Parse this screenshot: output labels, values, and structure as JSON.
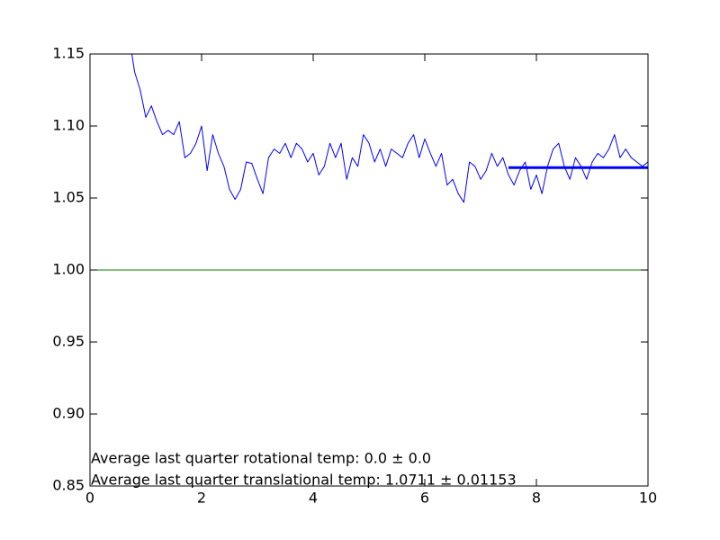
{
  "chart_data": {
    "type": "line",
    "series": [
      {
        "color": "#0000ff",
        "width": 1,
        "x": [
          0.75,
          0.8,
          0.9,
          1.0,
          1.1,
          1.2,
          1.3,
          1.4,
          1.5,
          1.6,
          1.7,
          1.8,
          1.9,
          2.0,
          2.1,
          2.2,
          2.3,
          2.4,
          2.5,
          2.6,
          2.7,
          2.8,
          2.9,
          3.0,
          3.1,
          3.2,
          3.3,
          3.4,
          3.5,
          3.6,
          3.7,
          3.8,
          3.9,
          4.0,
          4.1,
          4.2,
          4.3,
          4.4,
          4.5,
          4.6,
          4.7,
          4.8,
          4.9,
          5.0,
          5.1,
          5.2,
          5.3,
          5.4,
          5.5,
          5.6,
          5.7,
          5.8,
          5.9,
          6.0,
          6.1,
          6.2,
          6.3,
          6.4,
          6.5,
          6.6,
          6.7,
          6.8,
          6.9,
          7.0,
          7.1,
          7.2,
          7.3,
          7.4,
          7.5,
          7.6,
          7.7,
          7.8,
          7.9,
          8.0,
          8.1,
          8.2,
          8.3,
          8.4,
          8.5,
          8.6,
          8.7,
          8.8,
          8.9,
          9.0,
          9.1,
          9.2,
          9.3,
          9.4,
          9.5,
          9.6,
          9.7,
          9.8,
          9.9,
          10.0
        ],
        "values": [
          1.15,
          1.1375,
          1.125,
          1.106,
          1.114,
          1.103,
          1.094,
          1.097,
          1.094,
          1.103,
          1.078,
          1.081,
          1.088,
          1.1,
          1.069,
          1.094,
          1.081,
          1.072,
          1.056,
          1.049,
          1.056,
          1.075,
          1.074,
          1.063,
          1.053,
          1.078,
          1.084,
          1.081,
          1.088,
          1.078,
          1.088,
          1.084,
          1.075,
          1.081,
          1.066,
          1.072,
          1.088,
          1.078,
          1.088,
          1.063,
          1.078,
          1.072,
          1.094,
          1.088,
          1.075,
          1.084,
          1.072,
          1.084,
          1.081,
          1.078,
          1.088,
          1.094,
          1.078,
          1.091,
          1.081,
          1.072,
          1.081,
          1.059,
          1.063,
          1.053,
          1.047,
          1.075,
          1.072,
          1.063,
          1.069,
          1.081,
          1.072,
          1.078,
          1.066,
          1.059,
          1.069,
          1.075,
          1.056,
          1.066,
          1.053,
          1.072,
          1.084,
          1.088,
          1.072,
          1.063,
          1.078,
          1.072,
          1.063,
          1.075,
          1.081,
          1.078,
          1.084,
          1.094,
          1.078,
          1.084,
          1.078,
          1.075,
          1.072,
          1.075
        ]
      },
      {
        "color": "#0000ff",
        "width": 3,
        "x": [
          7.5,
          10
        ],
        "values": [
          1.0711,
          1.0711
        ]
      },
      {
        "color": "#008000",
        "width": 1,
        "x": [
          0,
          10
        ],
        "values": [
          1,
          1
        ]
      }
    ],
    "xlim": [
      0,
      10
    ],
    "xticks": [
      0,
      2,
      4,
      6,
      8,
      10
    ],
    "ylim": [
      0.85,
      1.15
    ],
    "yticks": [
      0.85,
      {
        "value": 0.9,
        "label": "0.90"
      },
      0.95,
      {
        "value": 1,
        "label": "1.00"
      },
      1.05,
      {
        "value": 1.1,
        "label": "1.10"
      },
      1.15
    ],
    "annotations": [
      "Average last quarter rotational temp: 0.0 ± 0.0",
      "Average last quarter translational temp: 1.0711 ± 0.01153"
    ]
  }
}
